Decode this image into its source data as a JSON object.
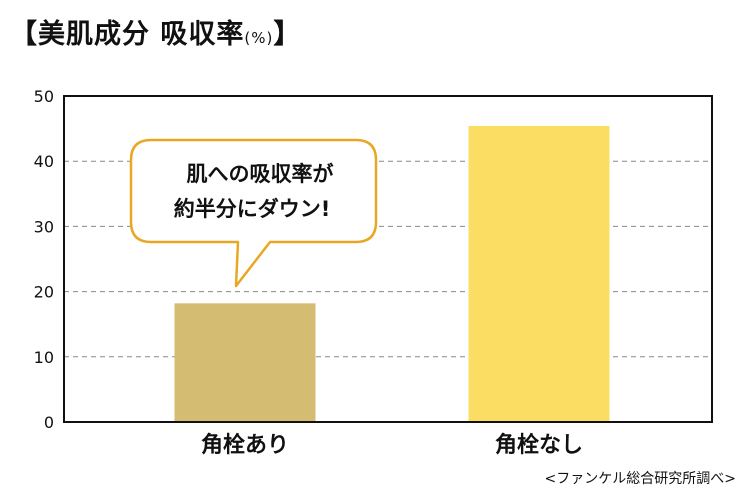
{
  "title": {
    "open_bracket": "【",
    "main": "美肌成分 吸収率",
    "unit": "(%)",
    "close_bracket": "】"
  },
  "source": "<ファンケル総合研究所調べ>",
  "callout": {
    "line1": "肌への吸収率が",
    "line2": "約半分にダウン!"
  },
  "colors": {
    "bar_with_corner": "#d4bc72",
    "bar_without_corner": "#fbdd64",
    "callout_border": "#e8a825",
    "grid": "#888888"
  },
  "chart_data": {
    "type": "bar",
    "categories": [
      "角栓あり",
      "角栓なし"
    ],
    "values": [
      18.2,
      45.4
    ],
    "yticks": [
      0,
      10,
      20,
      30,
      40,
      50
    ],
    "ylim": [
      0,
      50
    ],
    "grid": "dashed horizontal",
    "title": "美肌成分 吸収率(%)"
  }
}
